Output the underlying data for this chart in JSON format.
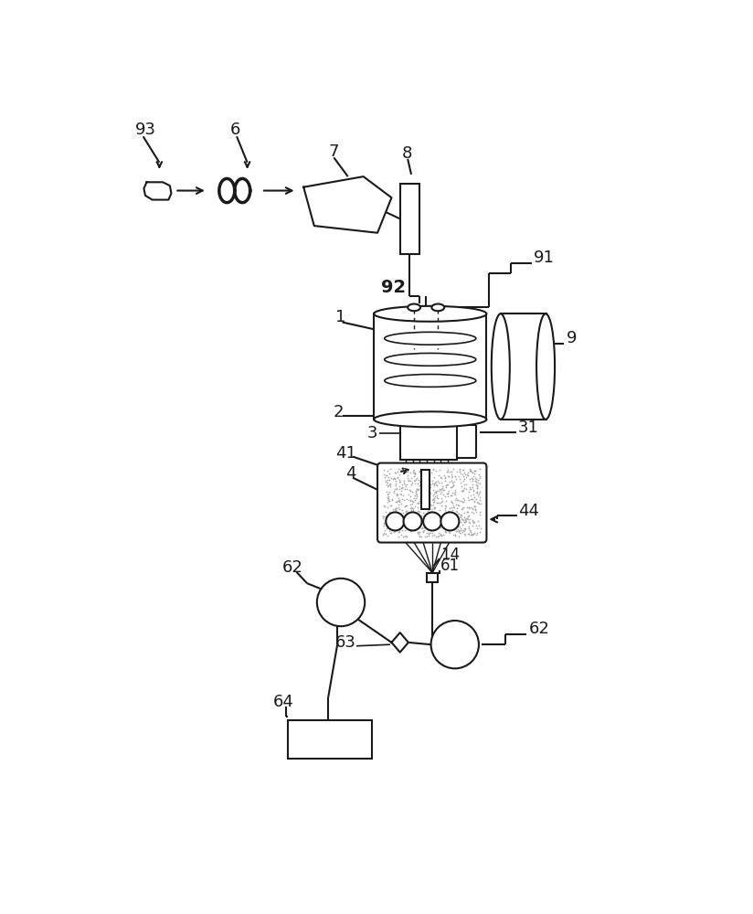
{
  "bg_color": "#ffffff",
  "lc": "#1a1a1a",
  "lw": 1.5,
  "figsize": [
    8.24,
    10.0
  ],
  "dpi": 100
}
